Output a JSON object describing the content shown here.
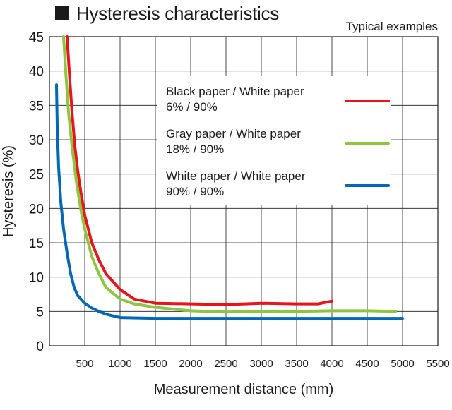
{
  "title": "Hysteresis characteristics",
  "note": "Typical examples",
  "chart_data": {
    "type": "line",
    "title": "Hysteresis characteristics",
    "xlabel": "Measurement distance (mm)",
    "ylabel": "Hysteresis (%)",
    "xlim": [
      0,
      5500
    ],
    "ylim": [
      0,
      45
    ],
    "xticks": [
      500,
      1000,
      1500,
      2000,
      2500,
      3000,
      3500,
      4000,
      4500,
      5000,
      5500
    ],
    "yticks": [
      0,
      5,
      10,
      15,
      20,
      25,
      30,
      35,
      40,
      45
    ],
    "grid": true,
    "legend_position": "top-right",
    "series": [
      {
        "name": "Black paper / White paper",
        "name_line2": "6% / 90%",
        "color": "#e8141c",
        "x": [
          250,
          280,
          320,
          360,
          400,
          450,
          500,
          600,
          700,
          800,
          1000,
          1200,
          1500,
          2000,
          2500,
          3000,
          3500,
          3800,
          4000
        ],
        "y": [
          45,
          40,
          34,
          29,
          25.5,
          22,
          19,
          15,
          12.5,
          10.5,
          8.2,
          6.8,
          6.2,
          6.1,
          6.0,
          6.2,
          6.1,
          6.1,
          6.5
        ]
      },
      {
        "name": "Gray paper / White paper",
        "name_line2": "18% / 90%",
        "color": "#8cc63e",
        "x": [
          200,
          230,
          270,
          320,
          380,
          450,
          500,
          600,
          700,
          800,
          1000,
          1200,
          1500,
          2000,
          2500,
          3000,
          3500,
          4000,
          4500,
          4900
        ],
        "y": [
          45,
          40,
          34,
          29,
          24,
          19.5,
          17,
          13,
          10.5,
          8.5,
          6.8,
          6.1,
          5.6,
          5.1,
          4.9,
          5.0,
          5.0,
          5.1,
          5.1,
          5.0
        ]
      },
      {
        "name": "White paper / White paper",
        "name_line2": "90% / 90%",
        "color": "#0068b7",
        "x": [
          100,
          110,
          130,
          160,
          200,
          250,
          300,
          350,
          400,
          500,
          600,
          700,
          800,
          1000,
          1500,
          2000,
          3000,
          4000,
          5000
        ],
        "y": [
          38,
          32,
          26,
          21,
          17,
          13.5,
          10.5,
          8.5,
          7.3,
          6.2,
          5.5,
          5.0,
          4.6,
          4.1,
          4.0,
          4.0,
          4.0,
          4.0,
          4.0
        ]
      }
    ]
  }
}
